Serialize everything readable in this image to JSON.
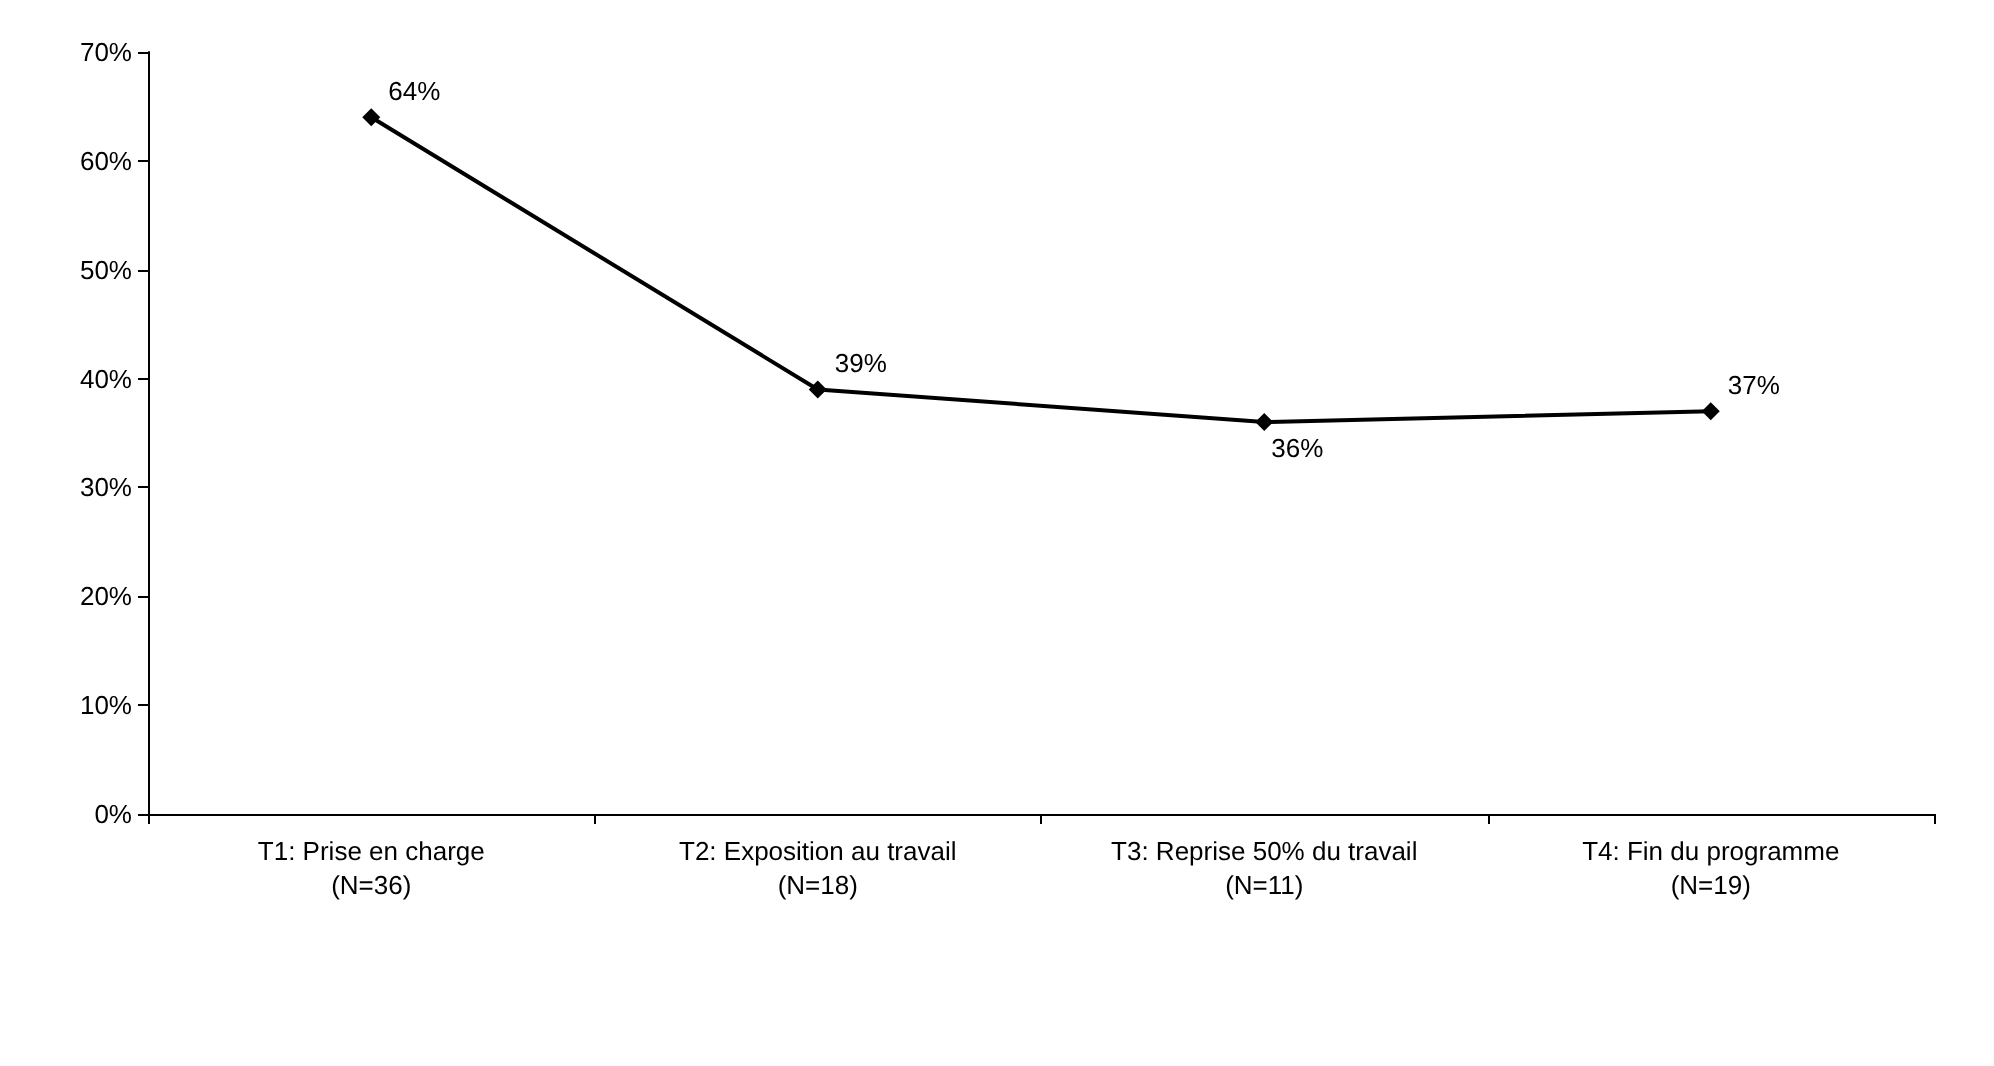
{
  "chart_data": {
    "type": "line",
    "categories": [
      "T1: Prise en charge\n(N=36)",
      "T2: Exposition au travail\n(N=18)",
      "T3: Reprise 50% du travail\n(N=11)",
      "T4: Fin du programme\n(N=19)"
    ],
    "series": [
      {
        "color": "#000000",
        "values": [
          64,
          39,
          36,
          37
        ],
        "value_labels": [
          "64%",
          "39%",
          "36%",
          "37%"
        ]
      }
    ],
    "ylim": [
      0,
      70
    ],
    "yticks": [
      {
        "value": 0,
        "label": "0%"
      },
      {
        "value": 10,
        "label": "10%"
      },
      {
        "value": 20,
        "label": "20%"
      },
      {
        "value": 30,
        "label": "30%"
      },
      {
        "value": 40,
        "label": "40%"
      },
      {
        "value": 50,
        "label": "50%"
      },
      {
        "value": 60,
        "label": "60%"
      },
      {
        "value": 70,
        "label": "70%"
      }
    ],
    "grid": false,
    "marker": "diamond",
    "line_style": "solid"
  }
}
